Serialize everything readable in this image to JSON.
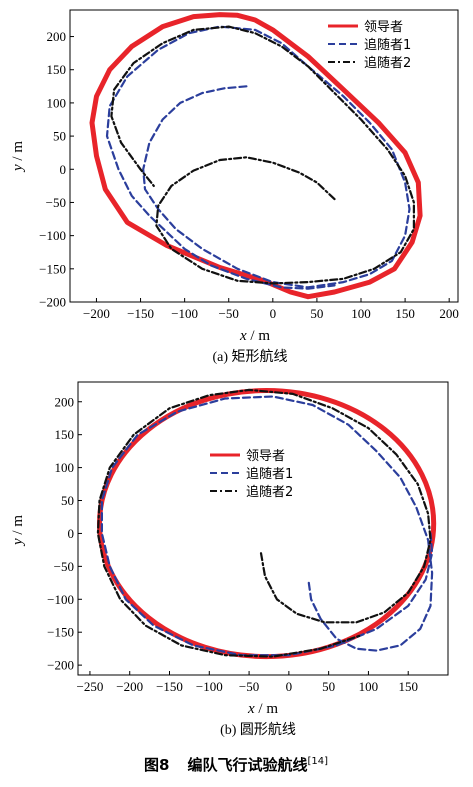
{
  "figure_caption": {
    "label": "图8",
    "text": "编队飞行试验航线",
    "ref": "[14]"
  },
  "colors": {
    "leader": "#e8242a",
    "follower1": "#2b3e9c",
    "follower2": "#111111"
  },
  "chart_data": [
    {
      "type": "line",
      "subtitle": "(a)  矩形航线",
      "xlabel_var": "x",
      "xlabel_unit": " / m",
      "ylabel_var": "y",
      "ylabel_unit": " / m",
      "xlim": [
        -230,
        210
      ],
      "ylim": [
        -200,
        240
      ],
      "xticks": [
        -200,
        -150,
        -100,
        -50,
        0,
        50,
        100,
        150,
        200
      ],
      "yticks": [
        -200,
        -150,
        -100,
        -50,
        0,
        50,
        100,
        150,
        200
      ],
      "legend_position": "top-right",
      "series": [
        {
          "name": "领导者",
          "style": "solid",
          "points": [
            [
              -60,
              233
            ],
            [
              -40,
              232
            ],
            [
              -20,
              225
            ],
            [
              0,
              210
            ],
            [
              40,
              170
            ],
            [
              80,
              120
            ],
            [
              120,
              70
            ],
            [
              150,
              25
            ],
            [
              165,
              -20
            ],
            [
              167,
              -70
            ],
            [
              158,
              -110
            ],
            [
              138,
              -150
            ],
            [
              110,
              -170
            ],
            [
              70,
              -185
            ],
            [
              40,
              -192
            ],
            [
              20,
              -185
            ],
            [
              -10,
              -168
            ],
            [
              -60,
              -148
            ],
            [
              -120,
              -115
            ],
            [
              -165,
              -80
            ],
            [
              -190,
              -30
            ],
            [
              -200,
              20
            ],
            [
              -205,
              70
            ],
            [
              -200,
              110
            ],
            [
              -185,
              150
            ],
            [
              -160,
              185
            ],
            [
              -125,
              215
            ],
            [
              -90,
              230
            ],
            [
              -60,
              233
            ]
          ]
        },
        {
          "name": "追随者1",
          "style": "dashed",
          "points": [
            [
              -30,
              125
            ],
            [
              -55,
              122
            ],
            [
              -80,
              115
            ],
            [
              -105,
              100
            ],
            [
              -125,
              75
            ],
            [
              -140,
              40
            ],
            [
              -147,
              0
            ],
            [
              -145,
              -30
            ],
            [
              -130,
              -60
            ],
            [
              -110,
              -90
            ],
            [
              -80,
              -120
            ],
            [
              -40,
              -150
            ],
            [
              0,
              -170
            ],
            [
              40,
              -178
            ],
            [
              80,
              -170
            ],
            [
              110,
              -158
            ],
            [
              135,
              -138
            ],
            [
              150,
              -100
            ],
            [
              155,
              -60
            ],
            [
              150,
              -20
            ],
            [
              135,
              30
            ],
            [
              110,
              70
            ],
            [
              80,
              110
            ],
            [
              40,
              155
            ],
            [
              10,
              190
            ],
            [
              -20,
              210
            ],
            [
              -60,
              215
            ],
            [
              -95,
              205
            ],
            [
              -130,
              180
            ],
            [
              -165,
              140
            ],
            [
              -185,
              95
            ],
            [
              -188,
              50
            ],
            [
              -175,
              0
            ],
            [
              -160,
              -40
            ],
            [
              -140,
              -70
            ],
            [
              -120,
              -95
            ],
            [
              -100,
              -120
            ],
            [
              -70,
              -145
            ],
            [
              -30,
              -165
            ],
            [
              10,
              -178
            ],
            [
              40,
              -180
            ],
            [
              70,
              -175
            ]
          ]
        },
        {
          "name": "追随者2",
          "style": "dashdot",
          "points": [
            [
              70,
              -45
            ],
            [
              50,
              -20
            ],
            [
              30,
              -5
            ],
            [
              0,
              10
            ],
            [
              -30,
              18
            ],
            [
              -60,
              14
            ],
            [
              -90,
              -2
            ],
            [
              -115,
              -25
            ],
            [
              -130,
              -55
            ],
            [
              -132,
              -85
            ],
            [
              -115,
              -120
            ],
            [
              -80,
              -150
            ],
            [
              -40,
              -168
            ],
            [
              0,
              -172
            ],
            [
              40,
              -170
            ],
            [
              80,
              -165
            ],
            [
              115,
              -150
            ],
            [
              145,
              -125
            ],
            [
              160,
              -90
            ],
            [
              160,
              -50
            ],
            [
              150,
              -10
            ],
            [
              130,
              30
            ],
            [
              100,
              75
            ],
            [
              70,
              115
            ],
            [
              40,
              155
            ],
            [
              10,
              185
            ],
            [
              -20,
              205
            ],
            [
              -50,
              215
            ],
            [
              -90,
              210
            ],
            [
              -125,
              190
            ],
            [
              -158,
              160
            ],
            [
              -180,
              120
            ],
            [
              -183,
              80
            ],
            [
              -172,
              40
            ],
            [
              -150,
              0
            ],
            [
              -135,
              -25
            ]
          ]
        }
      ]
    },
    {
      "type": "line",
      "subtitle": "(b)  圆形航线",
      "xlabel_var": "x",
      "xlabel_unit": " / m",
      "ylabel_var": "y",
      "ylabel_unit": " / m",
      "xlim": [
        -265,
        200
      ],
      "ylim": [
        -215,
        230
      ],
      "xticks": [
        -250,
        -200,
        -150,
        -100,
        -50,
        0,
        50,
        100,
        150
      ],
      "yticks": [
        -200,
        -150,
        -100,
        -50,
        0,
        50,
        100,
        150,
        200
      ],
      "legend_position": "center",
      "series": [
        {
          "name": "领导者",
          "style": "solid",
          "ellipse": {
            "cx": -28,
            "cy": 15,
            "rx": 210,
            "ry": 202
          }
        },
        {
          "name": "追随者1",
          "style": "dashed",
          "points": [
            [
              25,
              -75
            ],
            [
              28,
              -100
            ],
            [
              40,
              -130
            ],
            [
              60,
              -160
            ],
            [
              85,
              -175
            ],
            [
              110,
              -178
            ],
            [
              140,
              -170
            ],
            [
              165,
              -145
            ],
            [
              178,
              -110
            ],
            [
              180,
              -60
            ],
            [
              175,
              -10
            ],
            [
              160,
              40
            ],
            [
              140,
              85
            ],
            [
              110,
              125
            ],
            [
              75,
              165
            ],
            [
              30,
              195
            ],
            [
              -20,
              208
            ],
            [
              -80,
              205
            ],
            [
              -140,
              185
            ],
            [
              -190,
              150
            ],
            [
              -222,
              100
            ],
            [
              -235,
              50
            ],
            [
              -235,
              0
            ],
            [
              -225,
              -50
            ],
            [
              -205,
              -100
            ],
            [
              -170,
              -140
            ],
            [
              -120,
              -170
            ],
            [
              -60,
              -185
            ],
            [
              0,
              -185
            ],
            [
              60,
              -170
            ],
            [
              110,
              -145
            ],
            [
              150,
              -110
            ],
            [
              172,
              -70
            ],
            [
              180,
              -30
            ],
            [
              178,
              0
            ]
          ]
        },
        {
          "name": "追随者2",
          "style": "dashdot",
          "points": [
            [
              -35,
              -30
            ],
            [
              -30,
              -65
            ],
            [
              -15,
              -100
            ],
            [
              10,
              -122
            ],
            [
              45,
              -135
            ],
            [
              85,
              -135
            ],
            [
              120,
              -120
            ],
            [
              150,
              -90
            ],
            [
              170,
              -50
            ],
            [
              178,
              -10
            ],
            [
              175,
              30
            ],
            [
              162,
              75
            ],
            [
              135,
              120
            ],
            [
              100,
              160
            ],
            [
              55,
              190
            ],
            [
              5,
              212
            ],
            [
              -50,
              218
            ],
            [
              -100,
              210
            ],
            [
              -150,
              190
            ],
            [
              -195,
              150
            ],
            [
              -225,
              100
            ],
            [
              -238,
              50
            ],
            [
              -240,
              0
            ],
            [
              -232,
              -50
            ],
            [
              -212,
              -100
            ],
            [
              -180,
              -140
            ],
            [
              -135,
              -170
            ],
            [
              -80,
              -185
            ],
            [
              -20,
              -187
            ],
            [
              40,
              -175
            ],
            [
              90,
              -155
            ]
          ]
        }
      ]
    }
  ]
}
